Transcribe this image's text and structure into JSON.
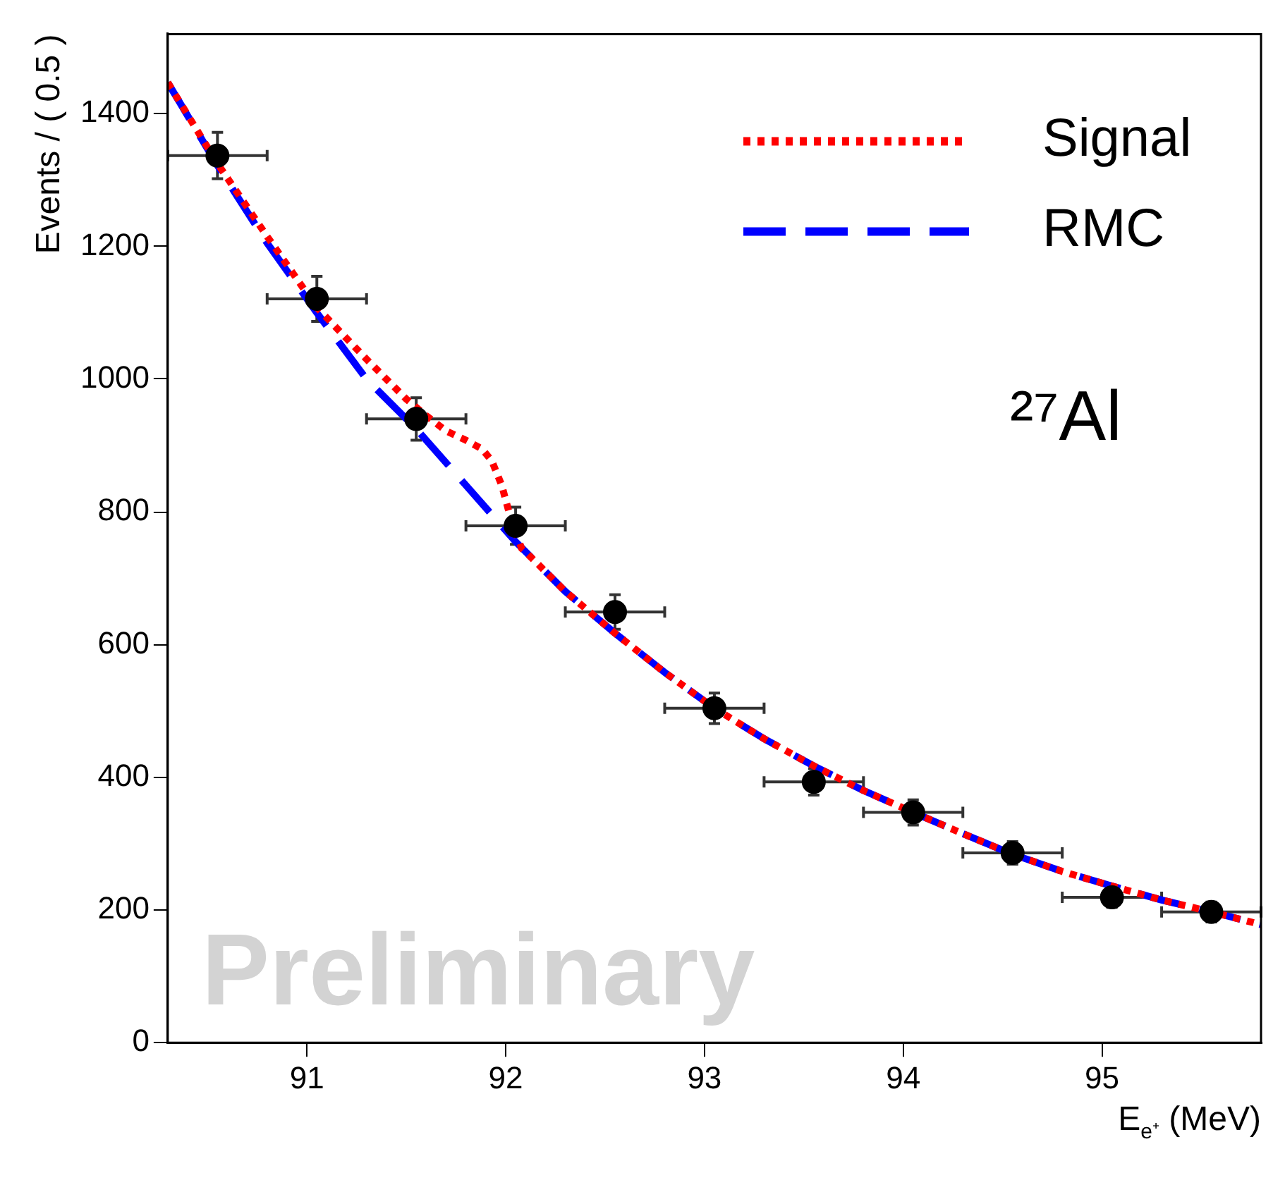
{
  "chart_data": {
    "type": "line",
    "xlabel": "E$_{e⁺}$ (MeV)",
    "ylabel": "Events / ( 0.5 )",
    "legend": "top right",
    "xlim": [
      90.3,
      95.8
    ],
    "xticks": [
      91,
      92,
      93,
      94,
      95
    ],
    "ylim": [
      0,
      1520
    ],
    "yticks": [
      0,
      200,
      400,
      600,
      800,
      1000,
      1200,
      1400
    ],
    "annotations": [
      "²⁷Al",
      "Preliminary"
    ],
    "series": [
      {
        "type": "scatter",
        "color": "#000000",
        "marker": "circle",
        "x": [
          90.55,
          91.05,
          91.55,
          92.05,
          92.55,
          93.05,
          93.55,
          94.05,
          94.55,
          95.05,
          95.55
        ],
        "values": [
          1337,
          1121,
          940,
          779,
          649,
          504,
          393,
          347,
          286,
          219,
          197
        ],
        "errors": [
          35,
          34,
          32,
          28,
          26,
          23,
          20,
          19,
          17,
          15,
          15
        ],
        "xerrors": [
          0.25,
          0.25,
          0.25,
          0.25,
          0.25,
          0.25,
          0.25,
          0.25,
          0.25,
          0.25,
          0.25
        ]
      },
      {
        "name": "Signal",
        "color": "#ff0000",
        "line_style": "dotted",
        "x": [
          90.3,
          90.55,
          90.8,
          91.05,
          91.3,
          91.5,
          91.6,
          91.7,
          91.8,
          91.88,
          91.93,
          91.98,
          92.03,
          92.08,
          92.15,
          92.3,
          92.55,
          92.8,
          93.05,
          93.3,
          93.55,
          93.8,
          94.05,
          94.3,
          94.55,
          94.8,
          95.05,
          95.3,
          95.55,
          95.8
        ],
        "values": [
          1447,
          1325,
          1215,
          1108,
          1030,
          970,
          945,
          922,
          908,
          895,
          877,
          840,
          785,
          745,
          725,
          680,
          617,
          558,
          504,
          458,
          417,
          380,
          347,
          315,
          284,
          258,
          236,
          215,
          197,
          178
        ]
      },
      {
        "name": "RMC",
        "color": "#0000ff",
        "line_style": "dashed",
        "x": [
          90.3,
          90.55,
          90.8,
          91.05,
          91.3,
          91.55,
          91.8,
          92.05,
          92.15,
          92.3,
          92.55,
          92.8,
          93.05,
          93.3,
          93.55,
          93.8,
          94.05,
          94.3,
          94.55,
          94.8,
          95.05,
          95.3,
          95.55,
          95.8
        ],
        "values": [
          1447,
          1322,
          1205,
          1100,
          1000,
          925,
          840,
          755,
          725,
          680,
          617,
          558,
          504,
          458,
          417,
          380,
          347,
          315,
          284,
          258,
          236,
          215,
          197,
          178
        ]
      }
    ]
  }
}
